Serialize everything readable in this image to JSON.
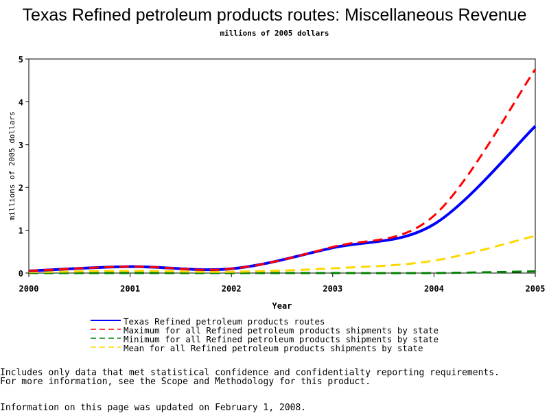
{
  "chart_data": {
    "type": "line",
    "title": "Texas Refined petroleum products routes: Miscellaneous Revenue",
    "subtitle": "millions of 2005 dollars",
    "xlabel": "Year",
    "ylabel": "millions of 2005 dollars",
    "x": [
      2000,
      2001,
      2002,
      2003,
      2004,
      2005
    ],
    "xlim": [
      2000,
      2005
    ],
    "ylim": [
      0,
      5
    ],
    "yticks": [
      0,
      1,
      2,
      3,
      4,
      5
    ],
    "grid": false,
    "legend_position": "bottom",
    "series": [
      {
        "name": "Texas Refined petroleum products routes",
        "color": "#0000ff",
        "dash": "solid",
        "values": [
          0.05,
          0.15,
          0.1,
          0.59,
          1.14,
          3.43
        ]
      },
      {
        "name": "Maximum for all Refined petroleum products shipments by state",
        "color": "#ff0000",
        "dash": "dashed",
        "values": [
          0.05,
          0.15,
          0.1,
          0.61,
          1.34,
          4.76
        ]
      },
      {
        "name": "Minimum for all Refined petroleum products shipments by state",
        "color": "#008000",
        "dash": "dashed",
        "values": [
          0,
          0,
          0,
          0,
          0,
          0.04
        ]
      },
      {
        "name": "Mean for all Refined petroleum products shipments by state",
        "color": "#ffd700",
        "dash": "dashed",
        "values": [
          0.02,
          0.05,
          0.03,
          0.11,
          0.29,
          0.87
        ]
      }
    ]
  },
  "notes": {
    "line1": "Includes only data that met statistical confidence and confidentialty reporting requirements.",
    "line2": "For more information, see the Scope and Methodology for this product.",
    "updated": "Information on this page was updated on February 1, 2008."
  }
}
